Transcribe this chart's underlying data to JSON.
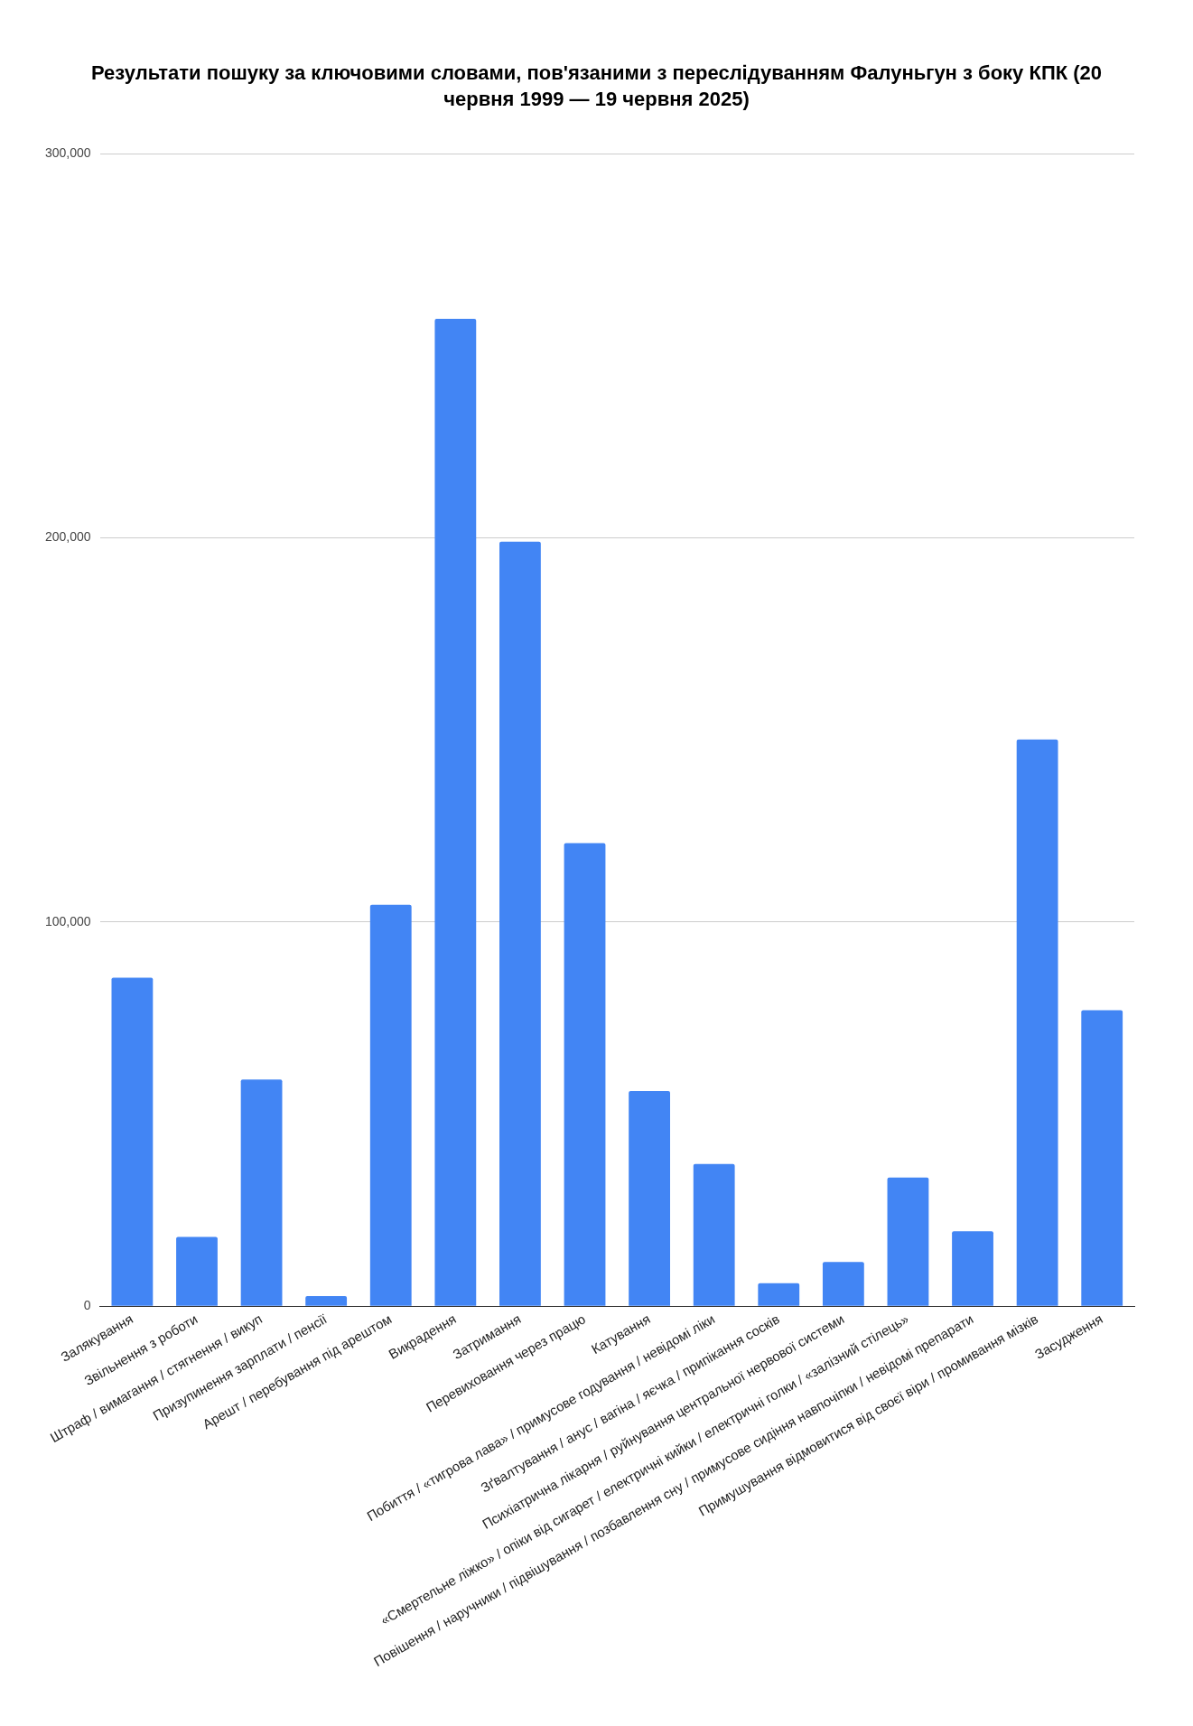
{
  "chart_data": {
    "type": "bar",
    "title": "Результати пошуку за ключовими словами, пов'язаними з переслідуванням Фалуньгун з боку КПК (20 червня 1999 — 19 червня 2025)",
    "categories": [
      "Залякування",
      "Звільнення з роботи",
      "Штраф / вимагання / стягнення / викуп",
      "Призупинення зарплати / пенсії",
      "Арешт / перебування під арештом",
      "Викрадення",
      "Затримання",
      "Перевиховання через працю",
      "Катування",
      "Побиття / «тигрова лава» / примусове годування / невідомі ліки",
      "Зґвалтування / анус / вагіна / яєчка / припікання сосків",
      "Психіатрична лікарня / руйнування центральної нервової системи",
      "«Смертельне ліжко» / опіки від сигарет / електричні кийки / електричні голки / «залізний стілець»",
      "Повішення / наручники / підвішування / позбавлення сну / примусове сидіння навпочіпки / невідомі препарати",
      "Примушування відмовитися від своєї віри / промивання мізків",
      "Засудження"
    ],
    "values": [
      85500,
      18000,
      59000,
      2600,
      104500,
      257000,
      199000,
      120500,
      56000,
      37000,
      6000,
      11500,
      33500,
      19500,
      147500,
      77000
    ],
    "color": "#4285f4",
    "ylim": [
      0,
      300000
    ],
    "yticks": [
      {
        "value": 0,
        "label": "0"
      },
      {
        "value": 100000,
        "label": "100,000"
      },
      {
        "value": 200000,
        "label": "200,000"
      },
      {
        "value": 300000,
        "label": "300,000"
      }
    ],
    "grid": "y",
    "legend": false
  }
}
